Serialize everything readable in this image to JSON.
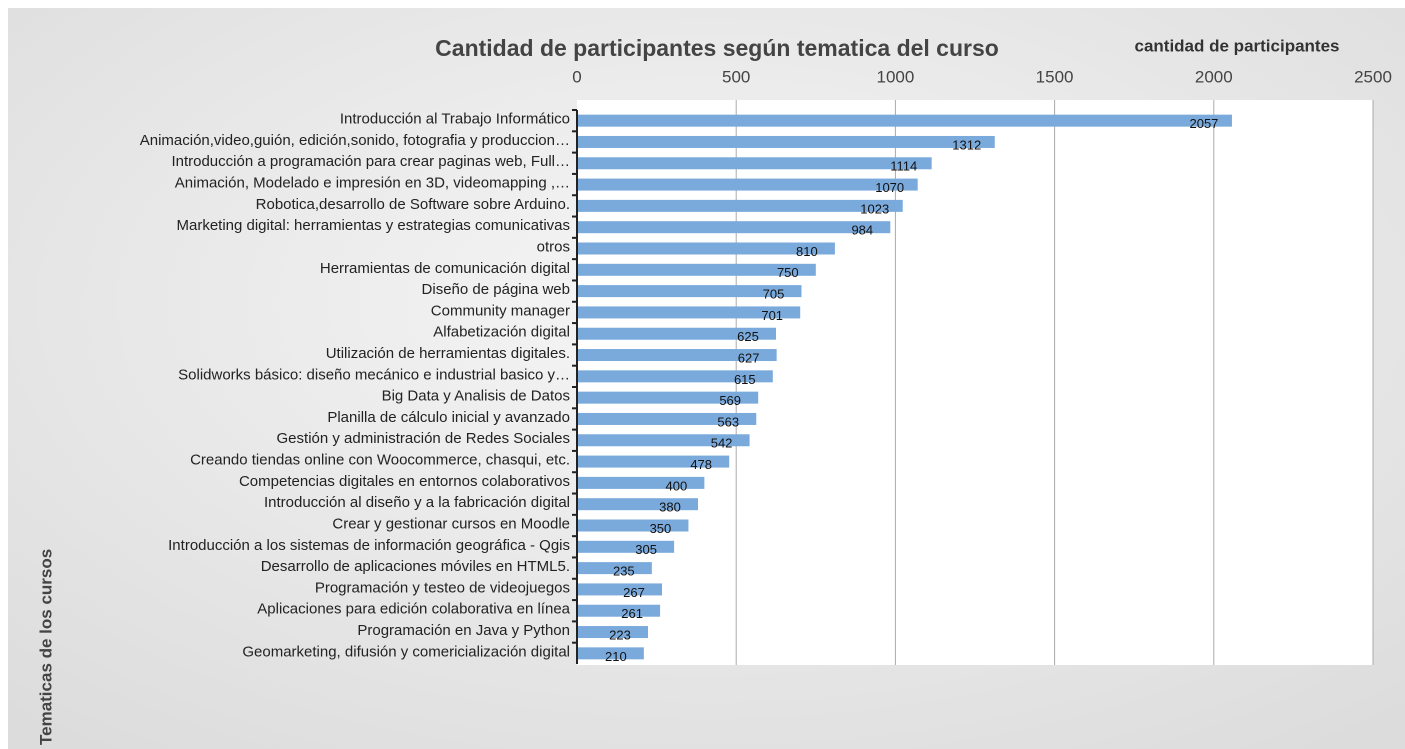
{
  "chart_data": {
    "type": "hbar",
    "title": "Cantidad de participantes según tematica del curso",
    "x_label": "cantidad de participantes",
    "y_label": "Tematicas de los cursos",
    "categories": [
      "Introducción al Trabajo Informático",
      "Animación,video,guión, edición,sonido, fotografia y produccion…",
      "Introducción a programación para crear paginas web, Full…",
      "Animación, Modelado e impresión en 3D, videomapping ,…",
      "Robotica,desarrollo de Software sobre Arduino.",
      "Marketing digital: herramientas y estrategias comunicativas",
      "otros",
      "Herramientas de comunicación digital",
      "Diseño de página web",
      "Community manager",
      "Alfabetización digital",
      "Utilización de herramientas digitales.",
      "Solidworks básico: diseño mecánico e industrial basico y…",
      "Big Data y Analisis de Datos",
      "Planilla de cálculo inicial y avanzado",
      "Gestión y administración de Redes Sociales",
      "Creando tiendas online con Woocommerce, chasqui, etc.",
      "Competencias digitales en entornos colaborativos",
      "Introducción al diseño y a la fabricación digital",
      "Crear y gestionar cursos en Moodle",
      "Introducción a los sistemas de información geográfica - Qgis",
      "Desarrollo de aplicaciones móviles en HTML5.",
      "Programación  y testeo de videojuegos",
      "Aplicaciones para edición colaborativa en línea",
      "Programación en Java  y Python",
      "Geomarketing, difusión y comericialización digital"
    ],
    "values": [
      2057,
      1312,
      1114,
      1070,
      1023,
      984,
      810,
      750,
      705,
      701,
      625,
      627,
      615,
      569,
      563,
      542,
      478,
      400,
      380,
      350,
      305,
      235,
      267,
      261,
      223,
      210
    ],
    "color": "#7aaadc",
    "xlim": [
      0,
      2500
    ],
    "xticks": [
      0,
      500,
      1000,
      1500,
      2000,
      2500
    ],
    "grid": true
  }
}
